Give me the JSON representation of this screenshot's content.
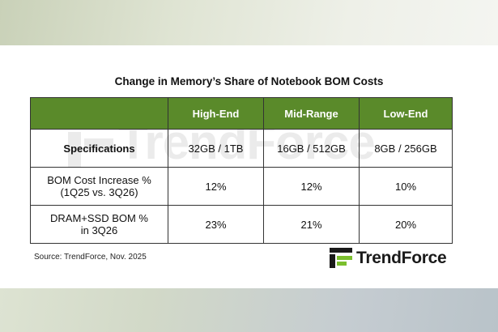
{
  "title": "Change in Memory’s Share of Notebook BOM Costs",
  "table": {
    "columns": [
      "",
      "High-End",
      "Mid-Range",
      "Low-End"
    ],
    "rows": [
      {
        "label": "Specifications",
        "cells": [
          "32GB / 1TB",
          "16GB / 512GB",
          "8GB / 256GB"
        ]
      },
      {
        "label_line1": "BOM Cost Increase %",
        "label_line2": "(1Q25 vs. 3Q26)",
        "cells": [
          "12%",
          "12%",
          "10%"
        ]
      },
      {
        "label_line1": "DRAM+SSD BOM %",
        "label_line2": "in 3Q26",
        "cells": [
          "23%",
          "21%",
          "20%"
        ]
      }
    ]
  },
  "source": "Source: TrendForce, Nov. 2025",
  "watermark": "TrendForce",
  "logo": {
    "text": "TrendForce",
    "icon": "trendforce-logo-icon",
    "colors": {
      "green": "#7bbf2e",
      "dark": "#1a1a1a"
    }
  },
  "colors": {
    "header_green": "#5a8a2a"
  }
}
